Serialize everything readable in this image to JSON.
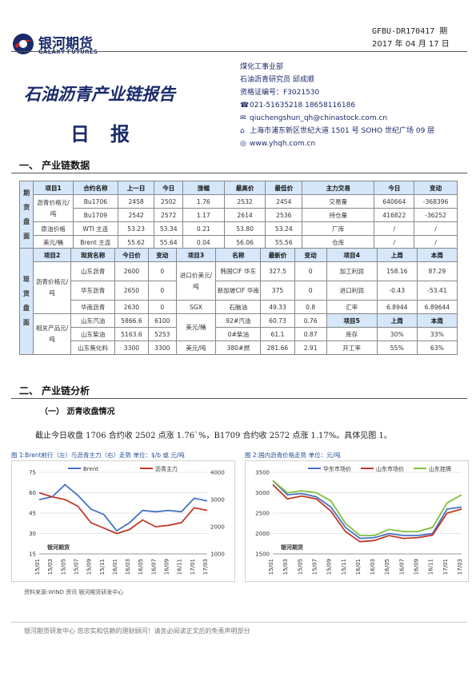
{
  "header": {
    "logo_cn": "银河期货",
    "logo_en": "GALAXY FUTURES",
    "report_id": "GFBU-DR170417 期",
    "date": "2017 年 04 月 17 日"
  },
  "title": "石油沥青产业链报告",
  "subtitle": "日报",
  "info": {
    "dept": "煤化工事业部",
    "analyst": "石油沥青研究员 邱成顺",
    "cert": "资格证编号：F3021530",
    "phone": "021-51635218   18658116186",
    "email": "qiuchengshun_qh@chinastock.com.cn",
    "address": "上海市浦东新区世纪大道 1501 号 SOHO 世纪广场 09 层",
    "web": "www.yhqh.com.cn"
  },
  "sections": {
    "s1": "一、 产业链数据",
    "s2": "二、 产业链分析",
    "s2_1": "（一） 沥青收盘情况",
    "s2_para": "截止今日收盘 1706 合约收 2502 点涨 1.76`%，B1709 合约收 2572 点涨 1.17%。具体见图 1。"
  },
  "table1": {
    "side": "期货盘面",
    "headers": [
      "项目1",
      "合约名称",
      "上一日",
      "今日",
      "涨幅",
      "最高价",
      "最低价",
      "主力交易",
      "今日",
      "变动"
    ],
    "group_label": "沥青价格元/吨",
    "rows": [
      [
        "Bu1706",
        "2458",
        "2502",
        "1.76",
        "2532",
        "2454",
        "交易量",
        "640664",
        "-368396"
      ],
      [
        "Bu1709",
        "2542",
        "2572",
        "1.17",
        "2614",
        "2536",
        "持仓量",
        "416822",
        "-36252"
      ]
    ],
    "row3": [
      "原油价格",
      "WTI 主连",
      "53.23",
      "53.34",
      "0.21",
      "53.80",
      "53.24",
      "厂库",
      "/",
      "/"
    ],
    "row4": [
      "美元/桶",
      "Brent 主连",
      "55.62",
      "55.64",
      "0.04",
      "56.06",
      "55.56",
      "仓库",
      "/",
      "/"
    ]
  },
  "table2": {
    "side": "现货盘面",
    "headers": [
      "项目2",
      "现货名称",
      "今日价",
      "变动",
      "项目3",
      "名称",
      "最新价",
      "变动",
      "项目4",
      "上周",
      "本周"
    ],
    "asphalt_label": "沥青价格元/吨",
    "asphalt": [
      [
        "山东沥青",
        "2600",
        "0"
      ],
      [
        "华东沥青",
        "2650",
        "0"
      ],
      [
        "华南沥青",
        "2630",
        "0"
      ]
    ],
    "import_label": "进口价美元/吨",
    "import": [
      [
        "韩国CIF 华东",
        "327.5",
        "0"
      ],
      [
        "新加坡CIF 华南",
        "375",
        "0"
      ]
    ],
    "sgx": "SGX",
    "sgx_row": [
      "石脑油",
      "49.33",
      "0.8"
    ],
    "usd_label": "美元/桶",
    "usd_rows": [
      [
        "92#汽油",
        "60.73",
        "0.76"
      ],
      [
        "0#柴油",
        "61.1",
        "0.87"
      ]
    ],
    "usd_label2": "美元/吨",
    "usd_row3": [
      "380#燃",
      "281.66",
      "2.91"
    ],
    "profit": [
      [
        "加工利润",
        "158.16",
        "87.29"
      ],
      [
        "进口利润",
        "-0.43",
        "-53.41"
      ]
    ],
    "fx": [
      "汇率",
      "6.8944",
      "6.89644"
    ],
    "item5": [
      "项目5",
      "上周",
      "本周"
    ],
    "inv": [
      "库存",
      "30%",
      "33%"
    ],
    "run": [
      "开工率",
      "55%",
      "63%"
    ],
    "related_label": "相关产品元/吨",
    "related": [
      [
        "山东汽油",
        "5866.6",
        "6100"
      ],
      [
        "山东柴油",
        "5163.6",
        "5253"
      ],
      [
        "山东焦化料",
        "3300",
        "3300"
      ]
    ]
  },
  "figures": {
    "fig1_caption": "图 1:Brent前行（左）与沥青主力（右）走势  单位：$/b 或 元/吨",
    "fig2_caption": "图 2:国内沥青价格走势  单位：元/吨",
    "source": "资料来源:WIND 资讯   银河期货研发中心",
    "watermark": "银河期货"
  },
  "footer": "银河期货研发中心  您忠实和信赖的理财顾问！请务必阅读正文后的免责声明部分",
  "chart_data": [
    {
      "type": "line",
      "title": "",
      "x": [
        "15/01",
        "15/03",
        "15/05",
        "15/07",
        "15/09",
        "15/11",
        "16/01",
        "16/03",
        "16/05",
        "16/07",
        "16/09",
        "16/11",
        "17/01",
        "17/03"
      ],
      "ylim": [
        15,
        75
      ],
      "y2lim": [
        1000,
        4000
      ],
      "series": [
        {
          "name": "Brent",
          "axis": "left",
          "color": "#4472c4",
          "values": [
            55,
            57,
            66,
            58,
            48,
            44,
            32,
            38,
            47,
            46,
            47,
            46,
            56,
            54
          ]
        },
        {
          "name": "沥青主力",
          "axis": "right",
          "color": "#c0392b",
          "values": [
            3250,
            3100,
            3000,
            2750,
            2150,
            1950,
            1750,
            1900,
            2250,
            2000,
            2050,
            2150,
            2700,
            2600
          ]
        }
      ]
    },
    {
      "type": "line",
      "title": "",
      "x": [
        "15/01",
        "15/03",
        "15/05",
        "15/07",
        "15/09",
        "15/11",
        "16/01",
        "16/03",
        "16/05",
        "16/07",
        "16/09",
        "16/11",
        "17/01",
        "17/03"
      ],
      "ylim": [
        1500,
        3500
      ],
      "series": [
        {
          "name": "华东市场价",
          "color": "#4472c4",
          "values": [
            3300,
            2950,
            2980,
            2900,
            2650,
            2150,
            1880,
            1900,
            2000,
            1950,
            1950,
            2000,
            2600,
            2650
          ]
        },
        {
          "name": "山东市场价",
          "color": "#c0392b",
          "values": [
            3200,
            2850,
            2920,
            2850,
            2550,
            2050,
            1800,
            1830,
            1950,
            1880,
            1900,
            1960,
            2500,
            2600
          ]
        },
        {
          "name": "山东挂牌",
          "color": "#7fbf3f",
          "values": [
            3300,
            3000,
            3050,
            3000,
            2800,
            2250,
            1950,
            1950,
            2100,
            2050,
            2050,
            2150,
            2750,
            2950
          ]
        }
      ]
    }
  ]
}
